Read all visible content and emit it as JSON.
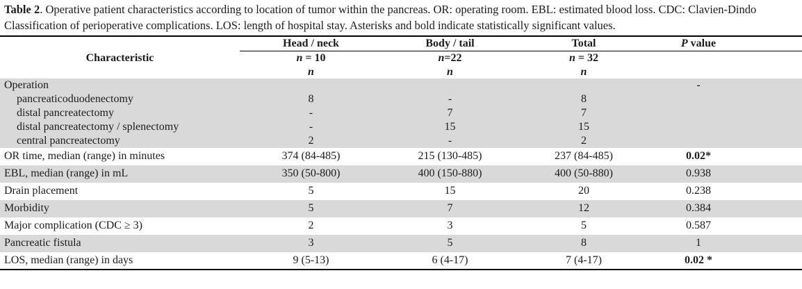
{
  "caption": {
    "label": "Table 2",
    "text": ". Operative patient characteristics according to location of tumor within the pancreas. OR: operating room. EBL: estimated blood loss. CDC: Clavien-Dindo Classification of perioperative complications. LOS: length of hospital stay. Asterisks and bold indicate statistically significant values."
  },
  "table": {
    "row_header_title": "Characteristic",
    "columns": [
      {
        "group": "Head / neck",
        "n_italic": "n",
        "n_rest": " = 10"
      },
      {
        "group": "Body / tail",
        "n_italic": "n",
        "n_rest": "=22"
      },
      {
        "group": "Total",
        "n_italic": "n",
        "n_rest": " = 32"
      }
    ],
    "n_symbol": "n",
    "p_column": {
      "italic": "P",
      "rest": " value"
    },
    "colors": {
      "stripe": "#d9d9d9",
      "rule": "#000000",
      "text": "#1c1c1c"
    },
    "rows": [
      {
        "label": "Operation",
        "indent": false,
        "shaded": true,
        "compact": true,
        "p_bold": false,
        "values": [
          "",
          "",
          "",
          "-"
        ]
      },
      {
        "label": "pancreaticoduodenectomy",
        "indent": true,
        "shaded": true,
        "compact": true,
        "p_bold": false,
        "values": [
          "8",
          "-",
          "8",
          ""
        ]
      },
      {
        "label": "distal pancreatectomy",
        "indent": true,
        "shaded": true,
        "compact": true,
        "p_bold": false,
        "values": [
          "-",
          "7",
          "7",
          ""
        ]
      },
      {
        "label": "distal pancreatectomy / splenectomy",
        "indent": true,
        "shaded": true,
        "compact": true,
        "p_bold": false,
        "values": [
          "-",
          "15",
          "15",
          ""
        ]
      },
      {
        "label": "central pancreatectomy",
        "indent": true,
        "shaded": true,
        "compact": true,
        "p_bold": false,
        "values": [
          "2",
          "-",
          "2",
          ""
        ]
      },
      {
        "label": "OR time, median (range) in minutes",
        "indent": false,
        "shaded": false,
        "compact": false,
        "p_bold": true,
        "values": [
          "374 (84-485)",
          "215 (130-485)",
          "237 (84-485)",
          "0.02*"
        ]
      },
      {
        "label": "EBL, median (range) in mL",
        "indent": false,
        "shaded": true,
        "compact": false,
        "p_bold": false,
        "values": [
          "350 (50-800)",
          "400 (150-880)",
          "400 (50-880)",
          "0.938"
        ]
      },
      {
        "label": "Drain placement",
        "indent": false,
        "shaded": false,
        "compact": false,
        "p_bold": false,
        "values": [
          "5",
          "15",
          "20",
          "0.238"
        ]
      },
      {
        "label": "Morbidity",
        "indent": false,
        "shaded": true,
        "compact": false,
        "p_bold": false,
        "values": [
          "5",
          "7",
          "12",
          "0.384"
        ]
      },
      {
        "label": "Major complication (CDC ≥ 3)",
        "indent": false,
        "shaded": false,
        "compact": false,
        "p_bold": false,
        "values": [
          "2",
          "3",
          "5",
          "0.587"
        ]
      },
      {
        "label": "Pancreatic fistula",
        "indent": false,
        "shaded": true,
        "compact": false,
        "p_bold": false,
        "values": [
          "3",
          "5",
          "8",
          "1"
        ]
      },
      {
        "label": "LOS, median (range) in days",
        "indent": false,
        "shaded": false,
        "compact": false,
        "p_bold": true,
        "values": [
          "9 (5-13)",
          "6 (4-17)",
          "7 (4-17)",
          "0.02 *"
        ]
      }
    ]
  }
}
